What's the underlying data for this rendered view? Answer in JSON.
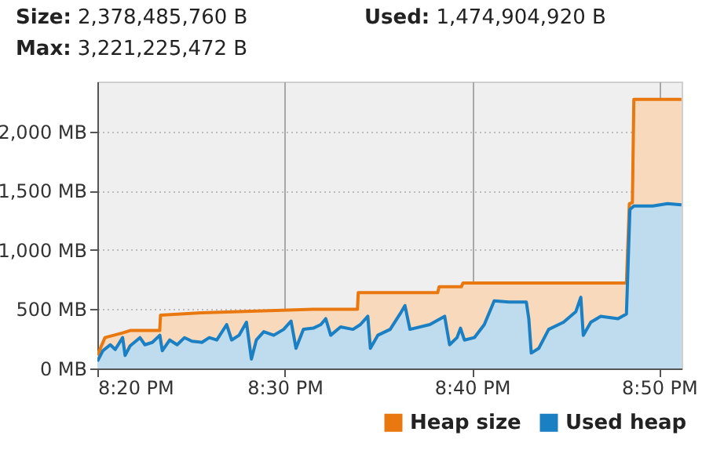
{
  "chart_data": {
    "type": "area",
    "annotations": [
      "Size: 2,378,485,760 B",
      "Used: 1,474,904,920 B",
      "Max: 3,221,225,472 B"
    ],
    "xlim": [
      20.3333,
      20.8533
    ],
    "xticks": [
      {
        "value": 20.3333,
        "label": "8:20 PM"
      },
      {
        "value": 20.5,
        "label": "8:30 PM"
      },
      {
        "value": 20.6667,
        "label": "8:40 PM"
      },
      {
        "value": 20.8333,
        "label": "8:50 PM"
      }
    ],
    "ylim": [
      0,
      2420
    ],
    "yticks": [
      {
        "value": 0,
        "label": "0 MB"
      },
      {
        "value": 500,
        "label": "500 MB"
      },
      {
        "value": 1000,
        "label": "1,000 MB"
      },
      {
        "value": 1500,
        "label": "1,500 MB"
      },
      {
        "value": 2000,
        "label": "2,000 MB"
      }
    ],
    "grid": true,
    "legend": "bottom right",
    "series": [
      {
        "name": "Heap size",
        "color": "#e8780f",
        "x": [
          20.3333,
          20.3373,
          20.34,
          20.3558,
          20.3625,
          20.3888,
          20.3895,
          20.426,
          20.5252,
          20.5648,
          20.5655,
          20.6362,
          20.6375,
          20.6573,
          20.6587,
          20.8042,
          20.8068,
          20.8095,
          20.8108,
          20.8532
        ],
        "values": [
          110,
          200,
          260,
          300,
          320,
          320,
          450,
          470,
          500,
          500,
          640,
          640,
          690,
          690,
          720,
          720,
          1390,
          1400,
          2270,
          2270
        ]
      },
      {
        "name": "Used heap",
        "color": "#1a7fc3",
        "x": [
          20.3333,
          20.3382,
          20.3448,
          20.3492,
          20.3558,
          20.358,
          20.3624,
          20.3712,
          20.3756,
          20.3822,
          20.3889,
          20.3911,
          20.3977,
          20.4043,
          20.4109,
          20.4175,
          20.4263,
          20.4329,
          20.4396,
          20.4484,
          20.4528,
          20.4594,
          20.466,
          20.4704,
          20.4748,
          20.4814,
          20.4903,
          20.4991,
          20.5057,
          20.5101,
          20.5167,
          20.5255,
          20.5322,
          20.5366,
          20.541,
          20.5498,
          20.5608,
          20.5674,
          20.574,
          20.5763,
          20.5829,
          20.5939,
          20.6027,
          20.6071,
          20.6115,
          20.6292,
          20.6424,
          20.6468,
          20.6534,
          20.6565,
          20.66,
          20.6688,
          20.6777,
          20.6865,
          20.6997,
          20.7151,
          20.7173,
          20.7195,
          20.7262,
          20.735,
          20.7482,
          20.7592,
          20.7636,
          20.7658,
          20.7725,
          20.7813,
          20.7967,
          20.8042,
          20.8073,
          20.8108,
          20.8276,
          20.8408,
          20.8532
        ],
        "values": [
          60,
          150,
          200,
          160,
          260,
          110,
          190,
          260,
          200,
          220,
          280,
          150,
          240,
          200,
          260,
          230,
          220,
          260,
          240,
          370,
          240,
          280,
          390,
          80,
          240,
          310,
          280,
          330,
          400,
          170,
          330,
          340,
          370,
          420,
          280,
          350,
          330,
          370,
          440,
          170,
          280,
          330,
          460,
          530,
          330,
          370,
          440,
          200,
          260,
          340,
          240,
          260,
          370,
          570,
          560,
          560,
          420,
          130,
          170,
          330,
          390,
          480,
          600,
          280,
          390,
          440,
          420,
          460,
          1340,
          1370,
          1370,
          1390,
          1380
        ]
      }
    ]
  }
}
